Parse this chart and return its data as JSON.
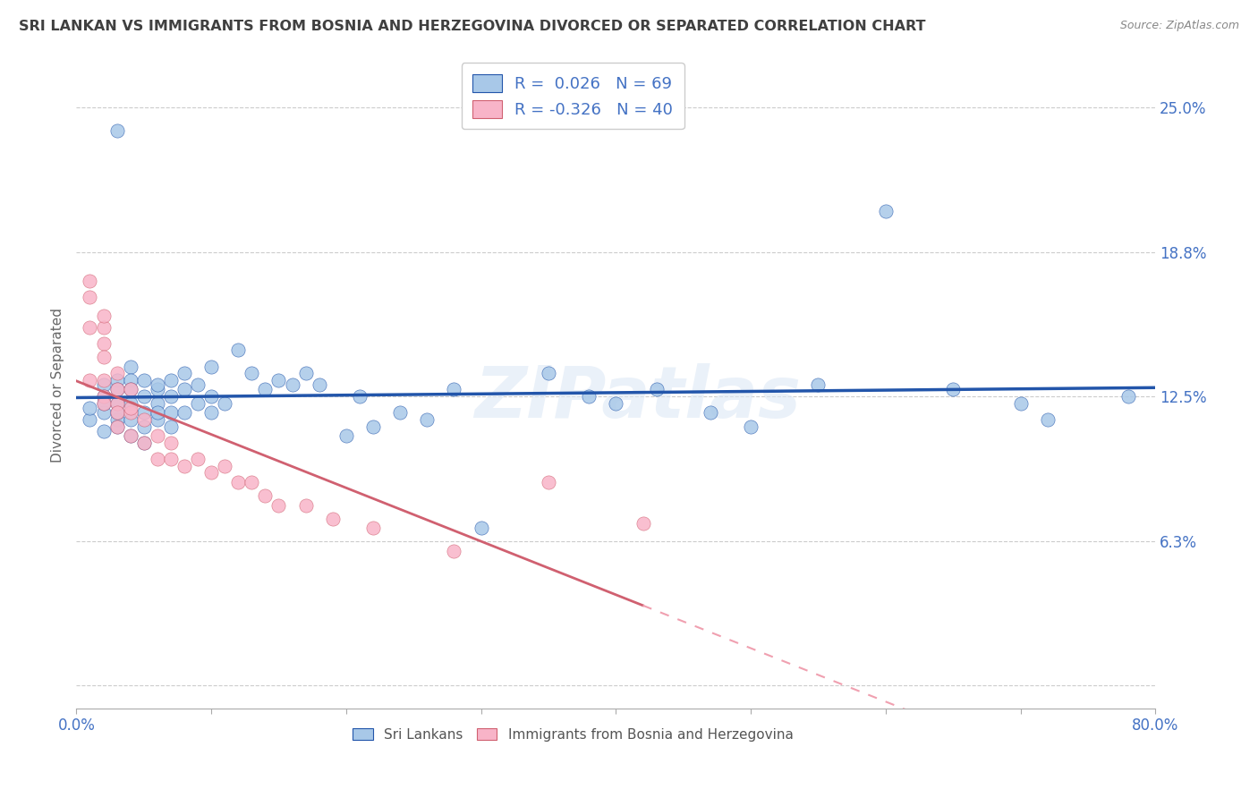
{
  "title": "SRI LANKAN VS IMMIGRANTS FROM BOSNIA AND HERZEGOVINA DIVORCED OR SEPARATED CORRELATION CHART",
  "source": "Source: ZipAtlas.com",
  "ylabel": "Divorced or Separated",
  "ytick_vals": [
    0.0,
    0.0625,
    0.125,
    0.1875,
    0.25
  ],
  "ytick_labels": [
    "",
    "6.3%",
    "12.5%",
    "18.8%",
    "25.0%"
  ],
  "xlim": [
    0.0,
    0.8
  ],
  "ylim": [
    -0.01,
    0.27
  ],
  "watermark": "ZIPatlas",
  "legend_line1": "R =  0.026   N = 69",
  "legend_line2": "R = -0.326   N = 40",
  "series1_color": "#a8c8e8",
  "series2_color": "#f8b4c8",
  "trend1_color": "#2255aa",
  "trend2_color": "#d06070",
  "trend2_dash_color": "#f0a0b0",
  "grid_color": "#cccccc",
  "title_color": "#404040",
  "label_color": "#4472c4",
  "axis_color": "#aaaaaa",
  "sri_lankans_x": [
    0.01,
    0.01,
    0.02,
    0.02,
    0.02,
    0.02,
    0.02,
    0.03,
    0.03,
    0.03,
    0.03,
    0.03,
    0.03,
    0.03,
    0.04,
    0.04,
    0.04,
    0.04,
    0.04,
    0.04,
    0.05,
    0.05,
    0.05,
    0.05,
    0.05,
    0.06,
    0.06,
    0.06,
    0.06,
    0.06,
    0.07,
    0.07,
    0.07,
    0.07,
    0.08,
    0.08,
    0.08,
    0.09,
    0.09,
    0.1,
    0.1,
    0.1,
    0.11,
    0.12,
    0.13,
    0.14,
    0.15,
    0.16,
    0.17,
    0.18,
    0.2,
    0.21,
    0.22,
    0.24,
    0.26,
    0.28,
    0.3,
    0.35,
    0.38,
    0.4,
    0.43,
    0.47,
    0.5,
    0.55,
    0.6,
    0.65,
    0.7,
    0.72,
    0.78
  ],
  "sri_lankans_y": [
    0.115,
    0.12,
    0.13,
    0.125,
    0.118,
    0.122,
    0.11,
    0.24,
    0.132,
    0.128,
    0.122,
    0.115,
    0.118,
    0.112,
    0.138,
    0.132,
    0.128,
    0.122,
    0.115,
    0.108,
    0.125,
    0.132,
    0.118,
    0.112,
    0.105,
    0.128,
    0.122,
    0.13,
    0.115,
    0.118,
    0.125,
    0.132,
    0.118,
    0.112,
    0.128,
    0.135,
    0.118,
    0.13,
    0.122,
    0.138,
    0.125,
    0.118,
    0.122,
    0.145,
    0.135,
    0.128,
    0.132,
    0.13,
    0.135,
    0.13,
    0.108,
    0.125,
    0.112,
    0.118,
    0.115,
    0.128,
    0.068,
    0.135,
    0.125,
    0.122,
    0.128,
    0.118,
    0.112,
    0.13,
    0.205,
    0.128,
    0.122,
    0.115,
    0.125
  ],
  "bosnia_x": [
    0.01,
    0.01,
    0.01,
    0.01,
    0.02,
    0.02,
    0.02,
    0.02,
    0.02,
    0.02,
    0.02,
    0.03,
    0.03,
    0.03,
    0.03,
    0.03,
    0.04,
    0.04,
    0.04,
    0.04,
    0.05,
    0.05,
    0.06,
    0.06,
    0.07,
    0.07,
    0.08,
    0.09,
    0.1,
    0.11,
    0.12,
    0.13,
    0.14,
    0.15,
    0.17,
    0.19,
    0.22,
    0.28,
    0.35,
    0.42
  ],
  "bosnia_y": [
    0.175,
    0.168,
    0.155,
    0.132,
    0.155,
    0.148,
    0.142,
    0.132,
    0.125,
    0.16,
    0.122,
    0.135,
    0.128,
    0.122,
    0.118,
    0.112,
    0.128,
    0.118,
    0.108,
    0.12,
    0.115,
    0.105,
    0.108,
    0.098,
    0.105,
    0.098,
    0.095,
    0.098,
    0.092,
    0.095,
    0.088,
    0.088,
    0.082,
    0.078,
    0.078,
    0.072,
    0.068,
    0.058,
    0.088,
    0.07
  ],
  "trend1_x_start": 0.0,
  "trend1_x_end": 0.8,
  "trend2_solid_end": 0.42,
  "trend2_x_end": 0.8
}
